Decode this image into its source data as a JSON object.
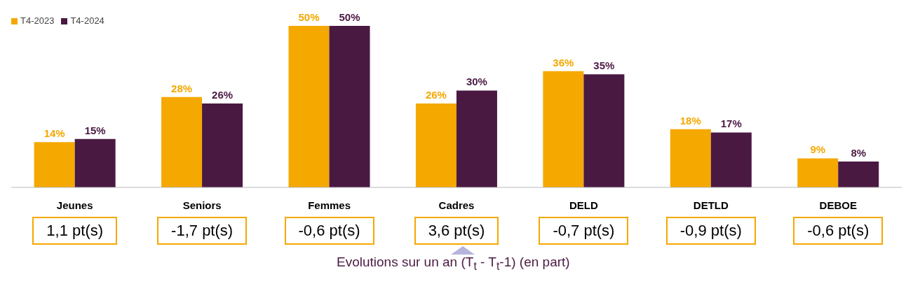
{
  "chart_data": {
    "type": "bar",
    "categories": [
      "Jeunes",
      "Seniors",
      "Femmes",
      "Cadres",
      "DELD",
      "DETLD",
      "DEBOE"
    ],
    "series": [
      {
        "name": "T4-2023",
        "color": "#f5a800",
        "values": [
          14,
          28,
          50,
          26,
          36,
          18,
          9
        ],
        "value_labels": [
          "14%",
          "28%",
          "50%",
          "26%",
          "36%",
          "18%",
          "9%"
        ]
      },
      {
        "name": "T4-2024",
        "color": "#4a1942",
        "values": [
          15,
          26,
          50,
          30,
          35,
          17,
          8
        ],
        "value_labels": [
          "15%",
          "26%",
          "50%",
          "30%",
          "35%",
          "17%",
          "8%"
        ]
      }
    ],
    "legend": "top left",
    "grid": false,
    "annotations": [
      "1,1 pt(s)",
      "-1,7 pt(s)",
      "-0,6 pt(s)",
      "3,6 pt(s)",
      "-0,7 pt(s)",
      "-0,9 pt(s)",
      "-0,6 pt(s)",
      "Evolutions sur un an (T$_{t}$ - T$_{t}$-1) (en part)"
    ]
  }
}
